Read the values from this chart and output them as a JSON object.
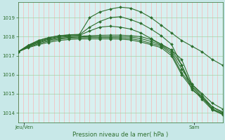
{
  "background_color": "#c8e8e8",
  "plot_bg_color": "#d8f0f0",
  "grid_color_v": "#ffaaaa",
  "grid_color_h": "#99cc99",
  "line_color": "#2d6e2d",
  "title": "Pression niveau de la mer( hPa )",
  "xlabel_jeuven": "Jeu/Ven",
  "xlabel_sam": "Sam",
  "ylim": [
    1013.5,
    1019.8
  ],
  "yticks": [
    1014,
    1015,
    1016,
    1017,
    1018,
    1019
  ],
  "xlim": [
    0,
    100
  ],
  "n_vgrid": 40,
  "series": [
    {
      "x": [
        0,
        5,
        10,
        15,
        20,
        25,
        30,
        35,
        40,
        45,
        50,
        55,
        60,
        65,
        70,
        75,
        80,
        85,
        90,
        95,
        100
      ],
      "y": [
        1017.2,
        1017.55,
        1017.8,
        1017.95,
        1018.05,
        1018.1,
        1018.12,
        1019.0,
        1019.3,
        1019.45,
        1019.55,
        1019.5,
        1019.3,
        1019.0,
        1018.6,
        1018.2,
        1017.8,
        1017.5,
        1017.2,
        1016.8,
        1016.5
      ]
    },
    {
      "x": [
        0,
        5,
        10,
        15,
        20,
        25,
        30,
        35,
        40,
        45,
        50,
        55,
        60,
        65,
        70,
        75,
        80,
        85,
        90,
        95,
        100
      ],
      "y": [
        1017.2,
        1017.55,
        1017.8,
        1017.95,
        1018.05,
        1018.08,
        1018.1,
        1018.5,
        1018.8,
        1019.0,
        1019.05,
        1018.9,
        1018.7,
        1018.4,
        1018.05,
        1017.6,
        1016.5,
        1015.4,
        1014.8,
        1014.3,
        1014.05
      ]
    },
    {
      "x": [
        0,
        5,
        10,
        15,
        20,
        25,
        30,
        35,
        40,
        45,
        50,
        55,
        60,
        65,
        70,
        75,
        80,
        85,
        90,
        95,
        100
      ],
      "y": [
        1017.2,
        1017.52,
        1017.75,
        1017.9,
        1018.0,
        1018.05,
        1018.07,
        1018.3,
        1018.5,
        1018.55,
        1018.5,
        1018.4,
        1018.2,
        1017.9,
        1017.6,
        1017.3,
        1016.8,
        1015.5,
        1015.0,
        1014.5,
        1014.2
      ]
    },
    {
      "x": [
        0,
        5,
        10,
        15,
        20,
        25,
        30,
        35,
        40,
        45,
        50,
        55,
        60,
        65,
        70,
        75,
        80,
        85,
        90,
        95,
        100
      ],
      "y": [
        1017.2,
        1017.5,
        1017.72,
        1017.87,
        1017.97,
        1018.0,
        1018.02,
        1018.05,
        1018.07,
        1018.08,
        1018.08,
        1018.05,
        1018.0,
        1017.85,
        1017.6,
        1017.3,
        1016.5,
        1015.2,
        1014.8,
        1014.2,
        1013.95
      ]
    },
    {
      "x": [
        0,
        5,
        10,
        15,
        20,
        25,
        30,
        35,
        40,
        45,
        50,
        55,
        60,
        65,
        70,
        75,
        80,
        85,
        90,
        95,
        100
      ],
      "y": [
        1017.2,
        1017.48,
        1017.68,
        1017.82,
        1017.92,
        1017.96,
        1017.98,
        1018.0,
        1018.0,
        1018.0,
        1018.0,
        1017.98,
        1017.9,
        1017.75,
        1017.55,
        1017.2,
        1016.3,
        1015.5,
        1014.9,
        1014.3,
        1014.0
      ]
    },
    {
      "x": [
        0,
        5,
        10,
        15,
        20,
        25,
        30,
        35,
        40,
        45,
        50,
        55,
        60,
        65,
        70,
        75,
        80,
        85,
        90,
        95,
        100
      ],
      "y": [
        1017.2,
        1017.45,
        1017.63,
        1017.77,
        1017.87,
        1017.92,
        1017.94,
        1017.95,
        1017.95,
        1017.95,
        1017.94,
        1017.9,
        1017.8,
        1017.65,
        1017.5,
        1017.1,
        1016.1,
        1015.4,
        1014.8,
        1014.2,
        1013.95
      ]
    },
    {
      "x": [
        0,
        5,
        10,
        15,
        20,
        25,
        30,
        35,
        40,
        45,
        50,
        55,
        60,
        65,
        70,
        75,
        80,
        85,
        90,
        95,
        100
      ],
      "y": [
        1017.2,
        1017.42,
        1017.58,
        1017.7,
        1017.8,
        1017.85,
        1017.88,
        1017.88,
        1017.88,
        1017.88,
        1017.87,
        1017.83,
        1017.72,
        1017.58,
        1017.42,
        1017.0,
        1016.0,
        1015.3,
        1014.7,
        1014.15,
        1013.9
      ]
    }
  ]
}
